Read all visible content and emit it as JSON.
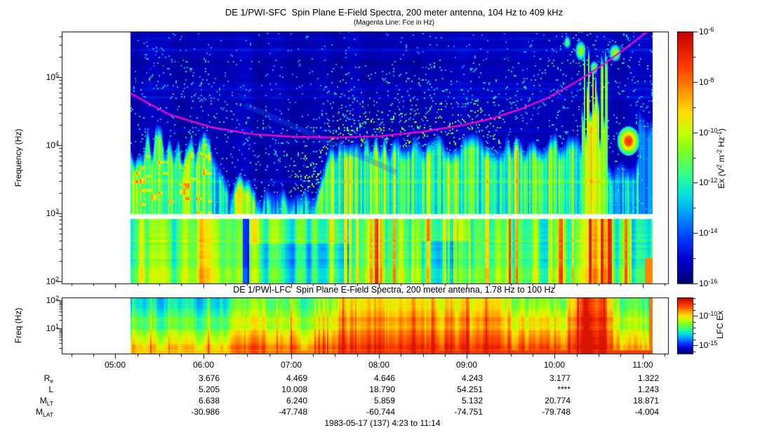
{
  "chart_data": {
    "type": "heatmap",
    "x_axis": {
      "label_times": [
        "05:00",
        "06:00",
        "07:00",
        "08:00",
        "09:00",
        "10:00",
        "11:00"
      ],
      "label_hours": [
        5,
        6,
        7,
        8,
        9,
        10,
        11
      ],
      "range_start": "4:23",
      "range_end": "11:14",
      "axis_start_hour": 4.39,
      "axis_end_hour": 11.29,
      "data_start_hour": 5.17,
      "data_end_hour": 11.11,
      "minor_tick_minutes": 15
    },
    "panels": [
      {
        "id": "sfc",
        "title": "DE 1/PWI-SFC  Spin Plane E-Field Spectra, 200 meter antenna, 104 Hz to 409 kHz",
        "subtitle": "(Magenta Line: Fce in Hz)",
        "ylabel": "Frequency (Hz)",
        "freq_range_hz": [
          104,
          409000
        ],
        "y_tick_exponents": [
          2,
          3,
          4,
          5
        ],
        "gap_band_hz": [
          830,
          990
        ],
        "colorbar": {
          "label_segments": [
            {
              "t": "Ex (V"
            },
            {
              "s": "2"
            },
            {
              "t": " m"
            },
            {
              "s": "-2"
            },
            {
              "t": " Hz"
            },
            {
              "s": "-1"
            },
            {
              "t": ")"
            }
          ],
          "tick_exponents_labeled": [
            -6,
            -8,
            -10,
            -12,
            -14,
            -16
          ],
          "range_exponents": [
            -16,
            -6
          ]
        },
        "fce_line": {
          "color": "#ff00cc",
          "points_hour_hz": [
            [
              5.17,
              58000
            ],
            [
              5.61,
              28400
            ],
            [
              6.09,
              18500
            ],
            [
              6.56,
              14600
            ],
            [
              7.04,
              13300
            ],
            [
              7.52,
              13000
            ],
            [
              8.0,
              13600
            ],
            [
              8.48,
              15700
            ],
            [
              8.96,
              19900
            ],
            [
              9.28,
              24600
            ],
            [
              9.6,
              33600
            ],
            [
              9.91,
              49000
            ],
            [
              10.23,
              83000
            ],
            [
              10.55,
              153000
            ],
            [
              10.79,
              258000
            ],
            [
              11.05,
              465000
            ]
          ]
        },
        "descending_trace_hour_hz": [
          [
            5.25,
            352000
          ],
          [
            5.53,
            219000
          ],
          [
            5.85,
            126000
          ],
          [
            6.09,
            75000
          ],
          [
            6.24,
            46000
          ],
          [
            6.34,
            29000
          ],
          [
            6.44,
            17000
          ],
          [
            6.56,
            8300
          ],
          [
            6.66,
            4600
          ]
        ],
        "features": [
          {
            "name": "low-freq broadband emission",
            "hours": [
              5.17,
              11.11
            ],
            "freq_hz": [
              104,
              830
            ],
            "level": "strong"
          },
          {
            "name": "auroral hiss funnel",
            "hours": [
              5.17,
              6.1
            ],
            "freq_hz": [
              104,
              12000
            ],
            "level": "strong"
          },
          {
            "name": "burst with sub-kHz dropout",
            "hours": [
              6.3,
              6.6
            ],
            "freq_hz": [
              104,
              3600
            ],
            "level": "intense"
          },
          {
            "name": "sub-kHz dropout stripe",
            "hours": [
              6.45,
              6.52
            ],
            "freq_hz": [
              104,
              830
            ],
            "level": "weak"
          },
          {
            "name": "plasmaspheric hiss band",
            "hours": [
              7.3,
              10.3
            ],
            "freq_hz": [
              990,
              15000
            ],
            "level": "moderate-strong"
          },
          {
            "name": "chorus speckles above fce",
            "hours": [
              7.0,
              9.4
            ],
            "freq_hz": [
              15000,
              60000
            ],
            "level": "weak"
          },
          {
            "name": "faint descending band",
            "hours": [
              6.48,
              8.2
            ],
            "freq_hz": [
              39000,
              4000
            ],
            "level": "very weak"
          },
          {
            "name": "intense vertical bursts",
            "hours": [
              10.3,
              10.6
            ],
            "freq_hz": [
              104,
              300000
            ],
            "level": "intense"
          },
          {
            "name": "isolated emission blob",
            "hours": [
              10.72,
              10.95
            ],
            "freq_hz": [
              8000,
              17000
            ],
            "level": "strong"
          }
        ]
      },
      {
        "id": "lfc",
        "title": "DE 1/PWI-LFC  Spin Plane E-Field Spectra, 200 meter antenna, 1.78 Hz to 100 Hz",
        "ylabel": "Freq (Hz)",
        "freq_range_hz": [
          1.78,
          100
        ],
        "y_tick_exponents": [
          2,
          1
        ],
        "colorbar": {
          "label": "LFC Ex",
          "tick_exponents_labeled": [
            -10,
            -15
          ],
          "range_exponents": [
            -16.4,
            -6.9
          ]
        },
        "intensity_profile": [
          {
            "hours": [
              5.17,
              6.3
            ],
            "top": 0.33,
            "mid": 0.48,
            "bottom": 0.72
          },
          {
            "hours": [
              6.3,
              7.5
            ],
            "top": 0.45,
            "mid": 0.58,
            "bottom": 0.8
          },
          {
            "hours": [
              7.5,
              9.5
            ],
            "top": 0.64,
            "mid": 0.74,
            "bottom": 0.88
          },
          {
            "hours": [
              9.5,
              10.18
            ],
            "top": 0.5,
            "mid": 0.66,
            "bottom": 0.85
          },
          {
            "hours": [
              10.18,
              10.66
            ],
            "top": 0.8,
            "mid": 0.86,
            "bottom": 0.93
          },
          {
            "hours": [
              10.66,
              11.11
            ],
            "top": 0.4,
            "mid": 0.52,
            "bottom": 0.7
          }
        ]
      }
    ],
    "ephemeris": {
      "row_labels": [
        {
          "base": "R",
          "sub": "e"
        },
        {
          "base": "L",
          "sub": ""
        },
        {
          "base": "M",
          "sub": "LT"
        },
        {
          "base": "M",
          "sub": "LAT"
        }
      ],
      "columns": [
        "06:00",
        "07:00",
        "08:00",
        "09:00",
        "10:00",
        "11:00"
      ],
      "rows": [
        [
          "3.676",
          "4.469",
          "4.646",
          "4.243",
          "3.177",
          "1.322"
        ],
        [
          "5.205",
          "10.008",
          "18.790",
          "54.251",
          "****",
          "1.243"
        ],
        [
          "6.638",
          "6.240",
          "5.859",
          "5.132",
          "20.774",
          "18.871"
        ],
        [
          "-30.986",
          "-47.748",
          "-60.744",
          "-74.751",
          "-79.748",
          "-4.004"
        ]
      ]
    },
    "footer": "1983-05-17 (137) 4:23 to 11:14"
  },
  "colors": {
    "fce_line": "#ff00cc",
    "frame": "#000000",
    "background": "#ffffff"
  }
}
